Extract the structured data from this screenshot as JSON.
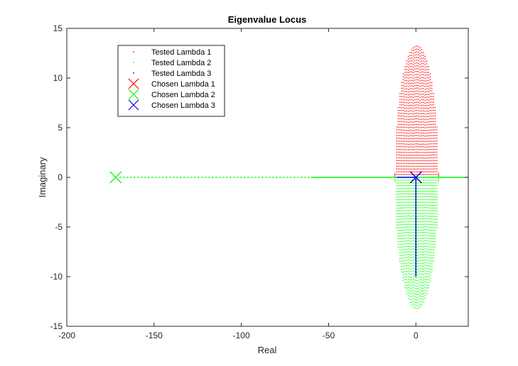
{
  "chart_data": {
    "type": "scatter",
    "title": "Eigenvalue Locus",
    "xlabel": "Real",
    "ylabel": "Imaginary",
    "xlim": [
      -200,
      30
    ],
    "ylim": [
      -15,
      15
    ],
    "xticks": [
      -200,
      -150,
      -100,
      -50,
      0
    ],
    "yticks": [
      -15,
      -10,
      -5,
      0,
      5,
      10,
      15
    ],
    "grid": false,
    "legend_position": "top-left",
    "legend": [
      {
        "label": "Tested Lambda 1",
        "marker": "dot",
        "color": "#ff0000"
      },
      {
        "label": "Tested Lambda 2",
        "marker": "dot",
        "color": "#00ff00"
      },
      {
        "label": "Tested Lambda 3",
        "marker": "dot",
        "color": "#0000ff"
      },
      {
        "label": "Chosen Lambda 1",
        "marker": "x",
        "color": "#ff0000"
      },
      {
        "label": "Chosen Lambda 2",
        "marker": "x",
        "color": "#00ff00"
      },
      {
        "label": "Chosen Lambda 3",
        "marker": "x",
        "color": "#0000ff"
      }
    ],
    "series": [
      {
        "name": "Tested Lambda 1",
        "color": "#ff0000",
        "shape": "upper ellipse of dotted columns",
        "x_range": [
          -12,
          13
        ],
        "y_peak": 13.2,
        "y_range": [
          0,
          13.2
        ]
      },
      {
        "name": "Tested Lambda 2",
        "color": "#00ff00",
        "shape": "lower ellipse of dotted columns and real-axis line",
        "x_range": [
          -12,
          13
        ],
        "y_peak": -13.2,
        "real_axis_x_range": [
          -170,
          30
        ],
        "y_range": [
          -13.2,
          0
        ]
      },
      {
        "name": "Tested Lambda 3",
        "color": "#0000ff",
        "shape": "vertical line near zero",
        "x": 0,
        "y_range": [
          -10,
          0
        ],
        "real_axis_x_range": [
          -11,
          1
        ]
      }
    ],
    "chosen": [
      {
        "name": "Chosen Lambda 1",
        "x": 0,
        "y": 0,
        "color": "#ff0000"
      },
      {
        "name": "Chosen Lambda 2",
        "x": -172,
        "y": 0,
        "color": "#00ff00"
      },
      {
        "name": "Chosen Lambda 3",
        "x": 0,
        "y": 0,
        "color": "#0000ff"
      }
    ]
  }
}
